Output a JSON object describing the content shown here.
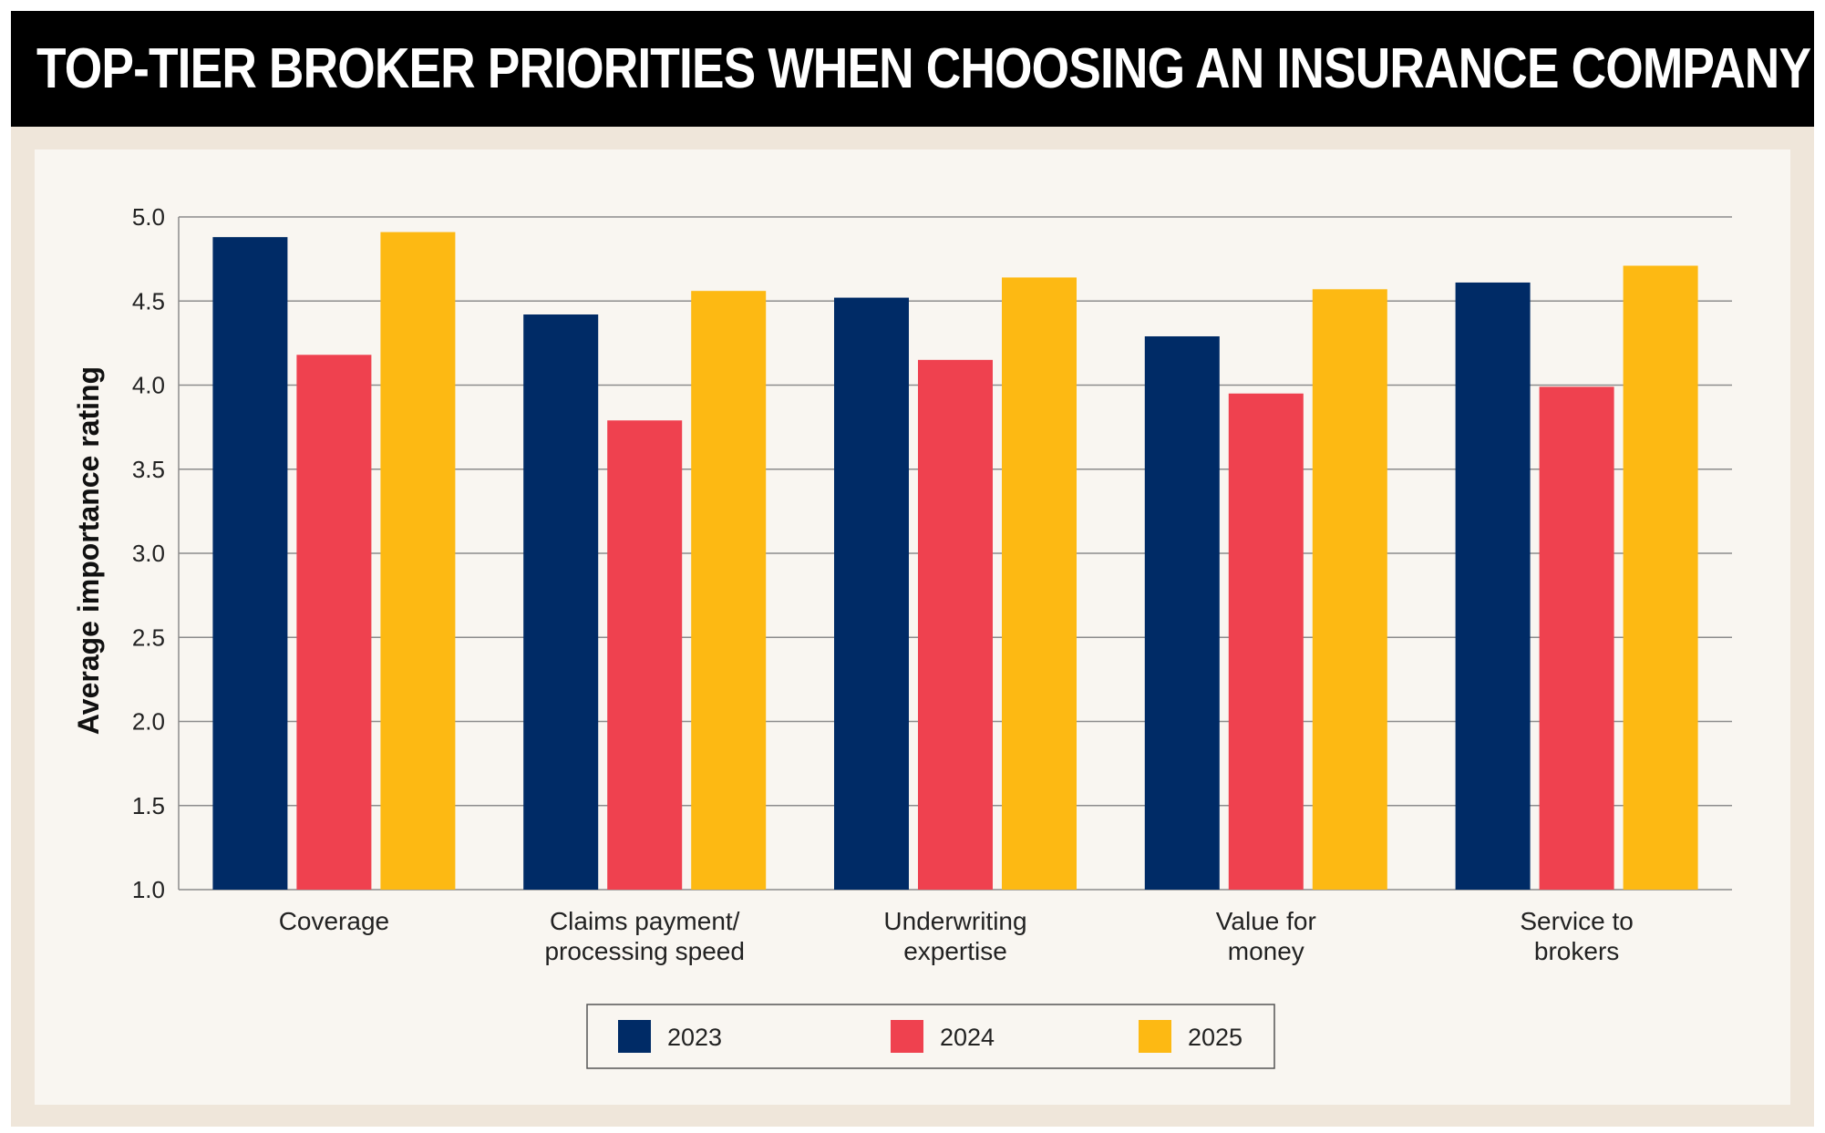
{
  "title": "TOP-TIER BROKER PRIORITIES WHEN CHOOSING AN INSURANCE COMPANY",
  "colors": {
    "series_2023": "#002b66",
    "series_2024": "#ef414f",
    "series_2025": "#fdb913",
    "gridline": "#8c8c8c",
    "background": "#f9f6f1"
  },
  "chart_data": {
    "type": "bar",
    "title": "TOP-TIER BROKER PRIORITIES WHEN CHOOSING AN INSURANCE COMPANY",
    "xlabel": "",
    "ylabel": "Average importance rating",
    "ylim": [
      1.0,
      5.0
    ],
    "yticks": [
      "1.0",
      "1.5",
      "2.0",
      "2.5",
      "3.0",
      "3.5",
      "4.0",
      "4.5",
      "5.0"
    ],
    "grid": true,
    "legend_position": "bottom-center",
    "categories": [
      [
        "Coverage"
      ],
      [
        "Claims payment/",
        "processing speed"
      ],
      [
        "Underwriting",
        "expertise"
      ],
      [
        "Value for",
        "money"
      ],
      [
        "Service to",
        "brokers"
      ]
    ],
    "series": [
      {
        "name": "2023",
        "color": "#002b66",
        "values": [
          4.88,
          4.42,
          4.52,
          4.29,
          4.61
        ]
      },
      {
        "name": "2024",
        "color": "#ef414f",
        "values": [
          4.18,
          3.79,
          4.15,
          3.95,
          3.99
        ]
      },
      {
        "name": "2025",
        "color": "#fdb913",
        "values": [
          4.91,
          4.56,
          4.64,
          4.57,
          4.71
        ]
      }
    ]
  }
}
